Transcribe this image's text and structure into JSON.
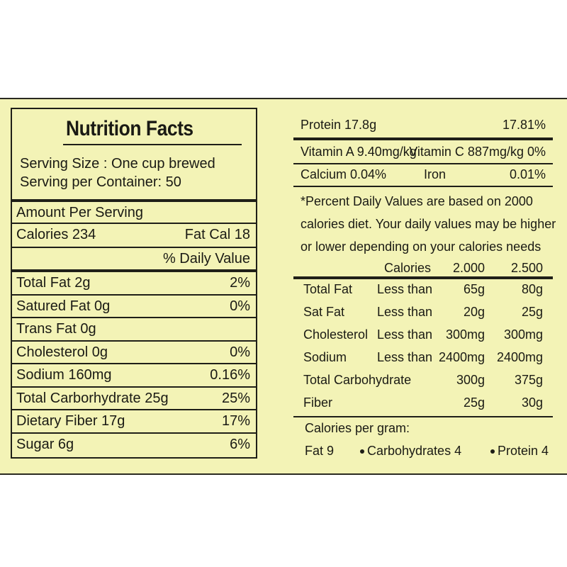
{
  "title": "Nutrition Facts",
  "serving_size": "Serving Size : One cup brewed",
  "serving_per_container": "Serving per Container: 50",
  "amount_per_serving": "Amount Per Serving",
  "calories": "Calories 234",
  "fat_cal": "Fat Cal 18",
  "daily_value_header": "% Daily Value",
  "nutrients": [
    {
      "label": "Total Fat 2g",
      "dv": "2%"
    },
    {
      "label": "Satured Fat 0g",
      "dv": "0%"
    },
    {
      "label": "Trans Fat 0g",
      "dv": ""
    },
    {
      "label": "Cholesterol 0g",
      "dv": "0%"
    },
    {
      "label": "Sodium 160mg",
      "dv": "0.16%"
    },
    {
      "label": "Total Carborhydrate 25g",
      "dv": "25%"
    },
    {
      "label": "Dietary Fiber 17g",
      "dv": "17%"
    },
    {
      "label": "Sugar 6g",
      "dv": "6%"
    }
  ],
  "protein": {
    "label": "Protein 17.8g",
    "dv": "17.81%"
  },
  "vitamin_a": "Vitamin A 9.40mg/kg",
  "vitamin_c": "Vitamin C 887mg/kg 0%",
  "calcium": "Calcium 0.04%",
  "iron_label": "Iron",
  "iron_value": "0.01%",
  "footnote_lines": [
    "*Percent Daily Values are based on 2000",
    "calories diet. Your daily values may be higher",
    "or lower depending on your calories needs"
  ],
  "table_header": {
    "calories": "Calories",
    "col1": "2.000",
    "col2": "2.500"
  },
  "table_rows": [
    {
      "name": "Total Fat",
      "qualifier": "Less than",
      "v1": "65g",
      "v2": "80g"
    },
    {
      "name": "Sat Fat",
      "qualifier": "Less than",
      "v1": "20g",
      "v2": "25g"
    },
    {
      "name": "Cholesterol",
      "qualifier": "Less than",
      "v1": "300mg",
      "v2": "300mg"
    },
    {
      "name": "Sodium",
      "qualifier": "Less than",
      "v1": "2400mg",
      "v2": "2400mg"
    },
    {
      "name": "Total Carbohydrate",
      "qualifier": "",
      "v1": "300g",
      "v2": "375g"
    },
    {
      "name": "Fiber",
      "qualifier": "",
      "v1": "25g",
      "v2": "30g"
    }
  ],
  "calories_per_gram": "Calories per gram:",
  "per_gram": {
    "fat": "Fat 9",
    "carbs": "Carbohydrates 4",
    "protein": "Protein 4"
  }
}
